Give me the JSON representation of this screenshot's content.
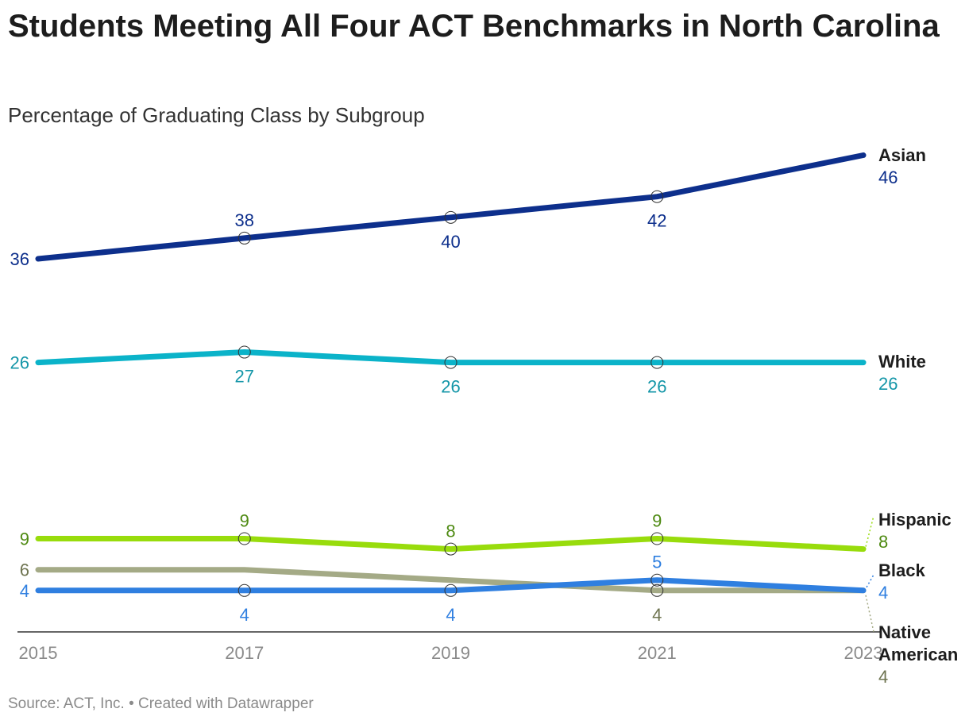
{
  "chart_data": {
    "type": "line",
    "title": "Students Meeting All Four ACT Benchmarks in North Carolina",
    "subtitle": "Percentage of Graduating Class by Subgroup",
    "source": "Source: ACT, Inc. • Created with Datawrapper",
    "x": [
      "2015",
      "2017",
      "2019",
      "2021",
      "2023"
    ],
    "ylim": [
      0,
      46
    ],
    "grid": false,
    "legend": "direct labels at line ends",
    "series": [
      {
        "name": "Asian",
        "color": "#0d2f8c",
        "label_color": "#0d2f8c",
        "values": [
          36,
          38,
          40,
          42,
          46
        ],
        "label_pos": [
          "left",
          "above",
          "below",
          "below"
        ]
      },
      {
        "name": "White",
        "color": "#0bb3c9",
        "label_color": "#1496a8",
        "values": [
          26,
          27,
          26,
          26,
          26
        ],
        "label_pos": [
          "left",
          "below",
          "below",
          "below"
        ]
      },
      {
        "name": "Hispanic",
        "color": "#98dc0c",
        "label_color": "#4e8a12",
        "values": [
          9,
          9,
          8,
          9,
          8
        ],
        "label_pos": [
          "left",
          "above",
          "above",
          "above"
        ]
      },
      {
        "name": "Native American",
        "color": "#a4aa86",
        "label_color": "#6e7450",
        "values": [
          6,
          6,
          5,
          4,
          4
        ],
        "label_pos": [
          "left",
          null,
          null,
          "below"
        ]
      },
      {
        "name": "Black",
        "color": "#2f7fe0",
        "label_color": "#2f7fe0",
        "values": [
          4,
          4,
          4,
          5,
          4
        ],
        "label_pos": [
          "left",
          "below",
          "below",
          "above"
        ]
      }
    ],
    "end_labels": [
      {
        "series": "Asian",
        "name": "Asian",
        "value": "46"
      },
      {
        "series": "White",
        "name": "White",
        "value": "26"
      },
      {
        "series": "Hispanic",
        "name": "Hispanic",
        "value": "8"
      },
      {
        "series": "Black",
        "name": "Black",
        "value": "4"
      },
      {
        "series": "Native American",
        "name_lines": [
          "Native",
          "American"
        ],
        "value": "4"
      }
    ]
  }
}
